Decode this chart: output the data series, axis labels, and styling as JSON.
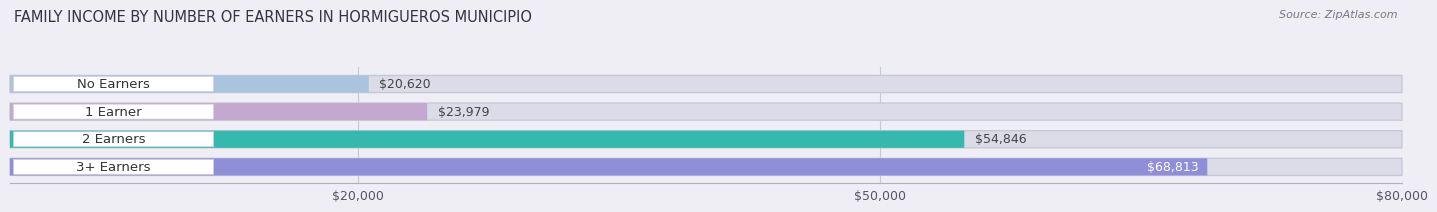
{
  "title": "FAMILY INCOME BY NUMBER OF EARNERS IN HORMIGUEROS MUNICIPIO",
  "source": "Source: ZipAtlas.com",
  "categories": [
    "No Earners",
    "1 Earner",
    "2 Earners",
    "3+ Earners"
  ],
  "values": [
    20620,
    23979,
    54846,
    68813
  ],
  "bar_colors": [
    "#aac4e0",
    "#c4a8cf",
    "#35b8ae",
    "#8e8fd6"
  ],
  "label_colors": [
    "#444444",
    "#444444",
    "#444444",
    "#ffffff"
  ],
  "xlim": [
    0,
    80000
  ],
  "xticks": [
    20000,
    50000,
    80000
  ],
  "xtick_labels": [
    "$20,000",
    "$50,000",
    "$80,000"
  ],
  "background_color": "#eeeef4",
  "bar_bg_color": "#dcdce8",
  "title_fontsize": 10.5,
  "tick_fontsize": 9,
  "label_fontsize": 9,
  "category_fontsize": 9.5
}
